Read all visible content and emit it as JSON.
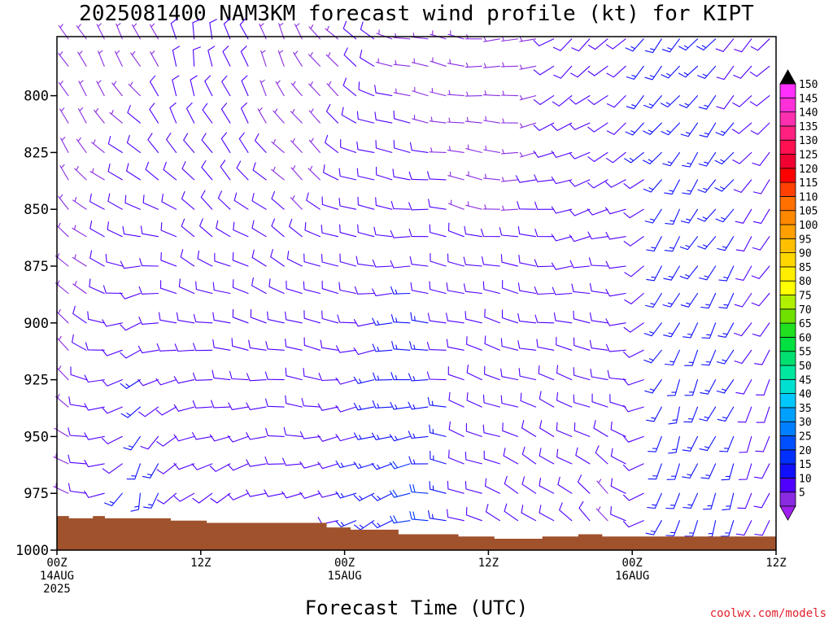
{
  "title": "2025081400 NAM3KM forecast wind profile (kt) for KIPT",
  "xlabel": "Forecast Time (UTC)",
  "credit": "coolwx.com/models",
  "chart_data": {
    "type": "wind-barb-profile",
    "title": "2025081400 NAM3KM forecast wind profile (kt) for KIPT",
    "xlabel": "Forecast Time (UTC)",
    "ylabel": "",
    "y_ticks": [
      800,
      825,
      850,
      875,
      900,
      925,
      950,
      975,
      1000
    ],
    "ylim": [
      774,
      1000
    ],
    "xlim_hours": [
      0,
      60
    ],
    "x_ticks": [
      {
        "hour": 0,
        "lines": [
          "00Z",
          "14AUG",
          "2025"
        ]
      },
      {
        "hour": 12,
        "lines": [
          "12Z"
        ]
      },
      {
        "hour": 24,
        "lines": [
          "00Z",
          "15AUG"
        ]
      },
      {
        "hour": 36,
        "lines": [
          "12Z"
        ]
      },
      {
        "hour": 48,
        "lines": [
          "00Z",
          "16AUG"
        ]
      },
      {
        "hour": 60,
        "lines": [
          "12Z"
        ]
      }
    ],
    "colorbar": {
      "levels": [
        5,
        10,
        15,
        20,
        25,
        30,
        35,
        40,
        45,
        50,
        55,
        60,
        65,
        70,
        75,
        80,
        85,
        90,
        95,
        100,
        105,
        110,
        115,
        120,
        125,
        130,
        135,
        140,
        145,
        150
      ],
      "colors": [
        "#8a2be2",
        "#5000ff",
        "#1010ff",
        "#0030ff",
        "#0050ff",
        "#0080ff",
        "#00a0ff",
        "#00c8ff",
        "#00e0d0",
        "#00e8a0",
        "#00e070",
        "#00e040",
        "#20e020",
        "#70e000",
        "#b0f000",
        "#ffff00",
        "#ffee00",
        "#ffd700",
        "#ffc000",
        "#ffa000",
        "#ff8800",
        "#ff7000",
        "#ff4000",
        "#ff0000",
        "#f00030",
        "#ff1050",
        "#ff2080",
        "#ff30b0",
        "#ff30d8",
        "#ff30ff"
      ],
      "under_color": "#a020f0",
      "over_color": "#000000"
    },
    "terrain_color": "#a0522d",
    "surface_pressure": [
      {
        "h": 0,
        "p": 985
      },
      {
        "h": 1,
        "p": 986
      },
      {
        "h": 3,
        "p": 985
      },
      {
        "h": 4,
        "p": 986
      },
      {
        "h": 9.5,
        "p": 987
      },
      {
        "h": 12.5,
        "p": 988
      },
      {
        "h": 22.5,
        "p": 990
      },
      {
        "h": 24.5,
        "p": 991
      },
      {
        "h": 28.5,
        "p": 993
      },
      {
        "h": 33.5,
        "p": 994
      },
      {
        "h": 36.5,
        "p": 995
      },
      {
        "h": 40.5,
        "p": 994
      },
      {
        "h": 43.5,
        "p": 993
      },
      {
        "h": 45.5,
        "p": 994
      },
      {
        "h": 60,
        "p": 994
      }
    ],
    "wind_barbs": {
      "time_step_hours": 1.5,
      "levels": [
        775,
        787,
        800,
        812,
        825,
        837,
        850,
        862,
        875,
        887,
        900,
        912,
        925,
        937,
        950,
        962,
        975,
        987,
        997
      ],
      "note": "barb directions (deg from) and speeds (kt) estimated per column, blended by height"
    }
  }
}
